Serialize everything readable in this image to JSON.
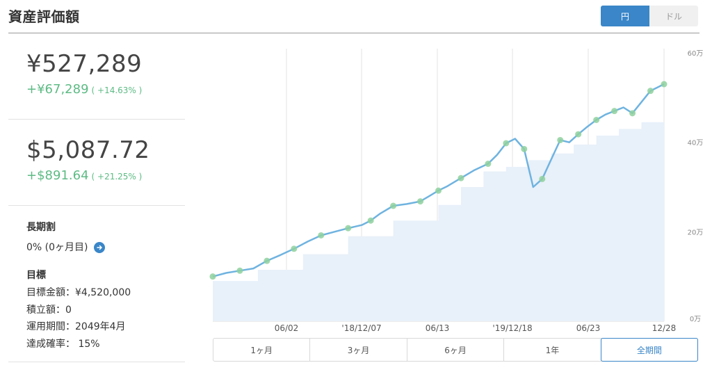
{
  "header": {
    "title": "資産評価額",
    "currency_options": [
      "円",
      "ドル"
    ],
    "currency_selected": "円"
  },
  "colors": {
    "accent": "#3a86c8",
    "positive": "#5dbb84",
    "line": "#6fb3e0",
    "area": "#e8f0f9",
    "marker": "#8fd19e"
  },
  "summary": {
    "jpy": {
      "value": "¥527,289",
      "change": "+¥67,289",
      "pct": "( +14.63% )"
    },
    "usd": {
      "value": "$5,087.72",
      "change": "+$891.64",
      "pct": "( +21.25% )"
    }
  },
  "long_term_discount": {
    "label": "長期割",
    "value": "0% (0ヶ月目)",
    "icon": "arrow-right-icon"
  },
  "goal": {
    "label": "目標",
    "lines": [
      "目標金額：¥4,520,000",
      "積立額：0",
      "運用期間：2049年4月",
      "達成確率： 15%"
    ]
  },
  "period_tabs": {
    "items": [
      "1ヶ月",
      "3ヶ月",
      "6ヶ月",
      "1年",
      "全期間"
    ],
    "selected": "全期間"
  },
  "chart_data": {
    "type": "area",
    "x_ticks": [
      "06/02",
      "'18/12/07",
      "06/13",
      "'19/12/18",
      "06/23",
      "12/28"
    ],
    "y_ticks": [
      "0万",
      "20万",
      "40万",
      "60万"
    ],
    "ylim": [
      0,
      600000
    ],
    "grid": "vertical",
    "series": [
      {
        "style": "line",
        "x": [
          0,
          0.03,
          0.06,
          0.09,
          0.12,
          0.15,
          0.18,
          0.21,
          0.24,
          0.27,
          0.3,
          0.33,
          0.35,
          0.37,
          0.4,
          0.43,
          0.46,
          0.48,
          0.5,
          0.52,
          0.55,
          0.58,
          0.61,
          0.63,
          0.65,
          0.67,
          0.69,
          0.71,
          0.73,
          0.75,
          0.77,
          0.79,
          0.81,
          0.83,
          0.85,
          0.87,
          0.89,
          0.91,
          0.93,
          0.95,
          0.97,
          1.0
        ],
        "values": [
          100000,
          108000,
          113000,
          118000,
          135000,
          148000,
          162000,
          178000,
          192000,
          200000,
          208000,
          215000,
          225000,
          240000,
          258000,
          262000,
          268000,
          280000,
          292000,
          302000,
          320000,
          338000,
          352000,
          372000,
          398000,
          408000,
          385000,
          300000,
          318000,
          362000,
          405000,
          400000,
          418000,
          435000,
          450000,
          462000,
          470000,
          478000,
          465000,
          490000,
          515000,
          530000
        ]
      },
      {
        "style": "area",
        "x": [
          0,
          0.1,
          0.2,
          0.3,
          0.4,
          0.5,
          0.55,
          0.6,
          0.65,
          0.7,
          0.75,
          0.8,
          0.85,
          0.9,
          0.95,
          1.0
        ],
        "values": [
          90000,
          115000,
          150000,
          190000,
          225000,
          260000,
          300000,
          335000,
          345000,
          360000,
          375000,
          395000,
          415000,
          430000,
          445000,
          460000
        ]
      }
    ]
  }
}
